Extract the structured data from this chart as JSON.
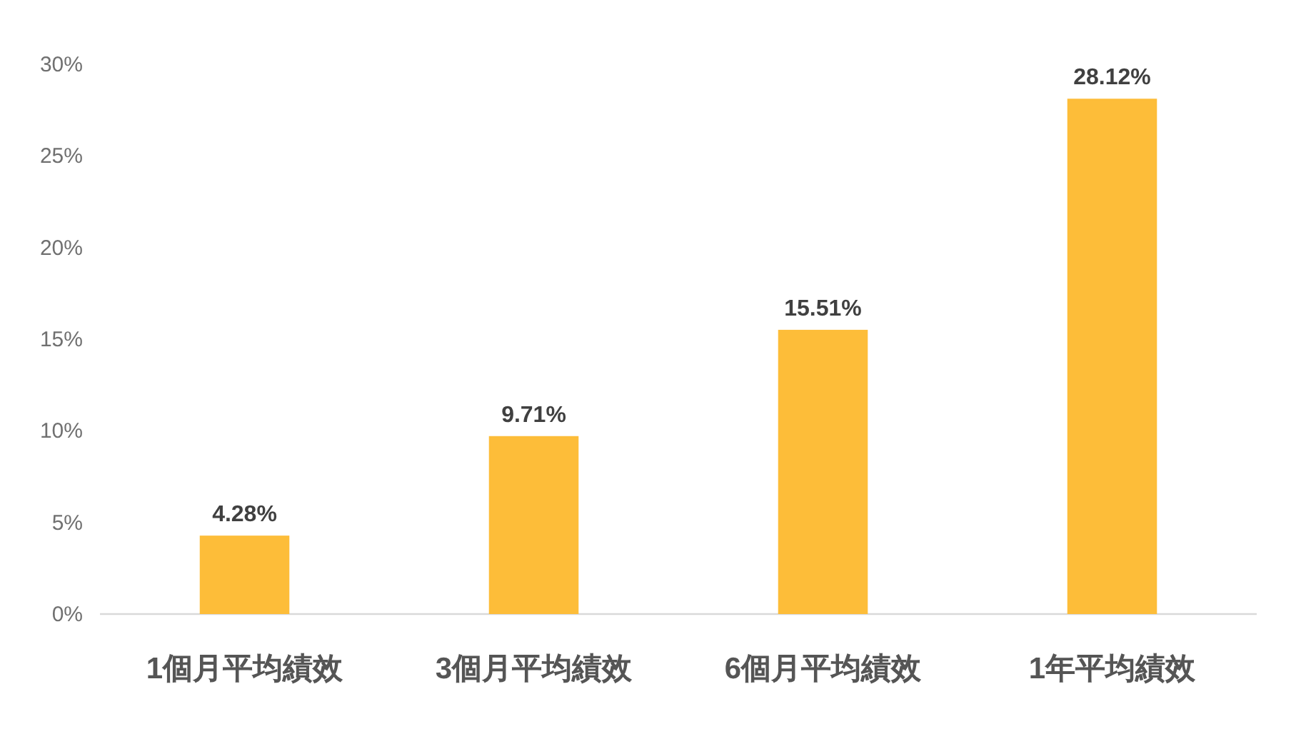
{
  "chart_data": {
    "type": "bar",
    "categories": [
      "1個月平均績效",
      "3個月平均績效",
      "6個月平均績效",
      "1年平均績效"
    ],
    "values": [
      4.28,
      9.71,
      15.51,
      28.12
    ],
    "value_labels": [
      "4.28%",
      "9.71%",
      "15.51%",
      "28.12%"
    ],
    "color": "#fdbd39",
    "ylim": [
      0,
      30
    ],
    "yticks": [
      {
        "value": 0,
        "label": "0%"
      },
      {
        "value": 5,
        "label": "5%"
      },
      {
        "value": 10,
        "label": "10%"
      },
      {
        "value": 15,
        "label": "15%"
      },
      {
        "value": 20,
        "label": "20%"
      },
      {
        "value": 25,
        "label": "25%"
      },
      {
        "value": 30,
        "label": "30%"
      }
    ],
    "grid": false
  }
}
